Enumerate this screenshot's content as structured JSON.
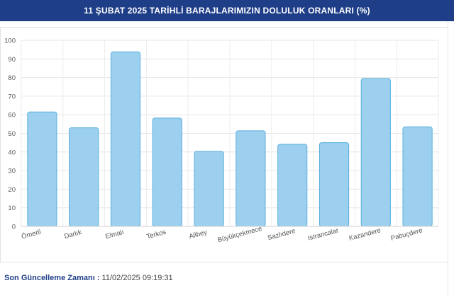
{
  "header": {
    "title": "11 ŞUBAT 2025 TARİHLİ BARAJLARIMIZIN DOLULUK ORANLARI (%)"
  },
  "footer": {
    "label": "Son Güncelleme Zamanı :",
    "value": "11/02/2025 09:19:31"
  },
  "colors": {
    "header_bg": "#1f3e88",
    "bar_fill": "#9dd0ee",
    "bar_stroke": "#5aaedc",
    "footer_text": "#1f3e88"
  },
  "chart_data": {
    "type": "bar",
    "title": "",
    "xlabel": "",
    "ylabel": "",
    "ylim": [
      0,
      100
    ],
    "yticks": [
      0,
      10,
      20,
      30,
      40,
      50,
      60,
      70,
      80,
      90,
      100
    ],
    "grid": true,
    "categories": [
      "Ömerli",
      "Darlık",
      "Elmalı",
      "Terkos",
      "Alibey",
      "Büyükçekmece",
      "Sazlıdere",
      "Istrancalar",
      "Kazandere",
      "Pabuçdere"
    ],
    "values": [
      61.5,
      53,
      93.8,
      58.2,
      40.3,
      51.4,
      44.1,
      45,
      79.5,
      53.5
    ]
  }
}
